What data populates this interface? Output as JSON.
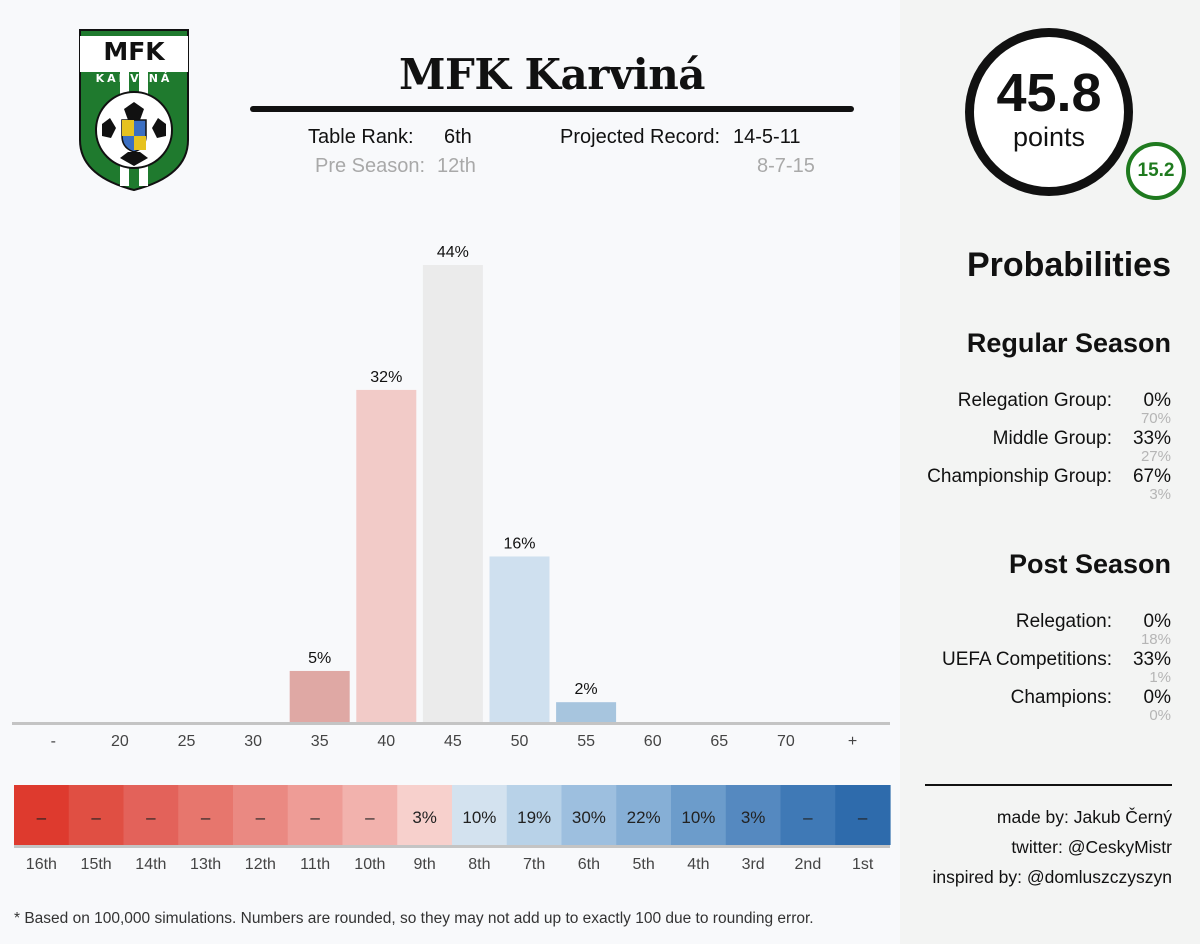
{
  "header": {
    "team_name": "MFK Karviná",
    "table_rank_label": "Table Rank:",
    "table_rank_value": "6th",
    "projected_record_label": "Projected Record:",
    "projected_record_value": "14-5-11",
    "pre_season_label": "Pre Season:",
    "pre_season_value": "12th",
    "pre_season_record": "8-7-15"
  },
  "logo": {
    "top_text": "MFK",
    "bottom_text": "KARVINÁ",
    "colors": {
      "green": "#1f7a2e",
      "white": "#ffffff",
      "black": "#111111"
    }
  },
  "points": {
    "value": "45.8",
    "label": "points",
    "change": "15.2",
    "change_color": "#1f7a1f"
  },
  "probabilities": {
    "title": "Probabilities",
    "regular_season": {
      "title": "Regular Season",
      "rows": [
        {
          "label": "Relegation Group:",
          "value": "0%",
          "previous": "70%"
        },
        {
          "label": "Middle Group:",
          "value": "33%",
          "previous": "27%"
        },
        {
          "label": "Championship Group:",
          "value": "67%",
          "previous": "3%"
        }
      ]
    },
    "post_season": {
      "title": "Post Season",
      "rows": [
        {
          "label": "Relegation:",
          "value": "0%",
          "previous": "18%"
        },
        {
          "label": "UEFA Competitions:",
          "value": "33%",
          "previous": "1%"
        },
        {
          "label": "Champions:",
          "value": "0%",
          "previous": "0%"
        }
      ]
    }
  },
  "credits": {
    "made_by": "made by: Jakub Černý",
    "twitter": "twitter: @CeskyMistr",
    "inspired_by": "inspired by: @domluszczyszyn"
  },
  "footnote": "* Based on 100,000 simulations. Numbers are rounded, so they may not add up to exactly 100 due to rounding error.",
  "chart_data": [
    {
      "type": "bar",
      "categories": [
        "-",
        "20",
        "25",
        "30",
        "35",
        "40",
        "45",
        "50",
        "55",
        "60",
        "65",
        "70",
        "+"
      ],
      "values": [
        0,
        0,
        0,
        0,
        5,
        32,
        44,
        16,
        2,
        0,
        0,
        0,
        0
      ],
      "data_labels": [
        "",
        "",
        "",
        "",
        "5%",
        "32%",
        "44%",
        "16%",
        "2%",
        "",
        "",
        "",
        ""
      ],
      "colors": [
        "#dfa8a4",
        "#dfa8a4",
        "#dfa8a4",
        "#dfa8a4",
        "#dfa8a4",
        "#f2cbc8",
        "#ebebeb",
        "#cfe0ef",
        "#a7c5de",
        "#a7c5de",
        "#a7c5de",
        "#a7c5de",
        "#a7c5de"
      ],
      "unit": "%",
      "ylim": [
        0,
        44
      ]
    },
    {
      "type": "heatmap",
      "categories": [
        "16th",
        "15th",
        "14th",
        "13th",
        "12th",
        "11th",
        "10th",
        "9th",
        "8th",
        "7th",
        "6th",
        "5th",
        "4th",
        "3rd",
        "2nd",
        "1st"
      ],
      "labels": [
        "–",
        "–",
        "–",
        "–",
        "–",
        "–",
        "–",
        "3%",
        "10%",
        "19%",
        "30%",
        "22%",
        "10%",
        "3%",
        "–",
        "–"
      ],
      "colors": [
        "#de3a2e",
        "#e04f43",
        "#e3625a",
        "#e7766d",
        "#ea8982",
        "#ee9c96",
        "#f2b2ad",
        "#f7d0cc",
        "#d3e2ef",
        "#b8d2e8",
        "#9dbfdf",
        "#86afd6",
        "#6c9ccb",
        "#5589c0",
        "#3f79b6",
        "#2e6bac"
      ]
    }
  ]
}
